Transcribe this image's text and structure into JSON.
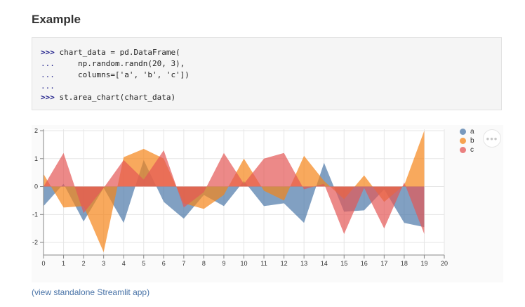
{
  "heading": "Example",
  "code": {
    "lines": [
      {
        "prompt": ">>>",
        "text": " chart_data = pd.DataFrame("
      },
      {
        "prompt": "...",
        "text": "     np.random.randn(20, 3),"
      },
      {
        "prompt": "...",
        "text": "     columns=['a', 'b', 'c'])"
      },
      {
        "prompt": "...",
        "text": ""
      },
      {
        "prompt": ">>>",
        "text": " st.area_chart(chart_data)"
      }
    ]
  },
  "more_icon": "ellipsis-icon",
  "more_label": "•••",
  "link_text": "(view standalone Streamlit app)",
  "colors": {
    "a": "#4c78a8",
    "b": "#f58518",
    "c": "#e45756"
  },
  "chart_data": {
    "type": "area",
    "x": [
      0,
      1,
      2,
      3,
      4,
      5,
      6,
      7,
      8,
      9,
      10,
      11,
      12,
      13,
      14,
      15,
      16,
      17,
      18,
      19
    ],
    "x_ticks": [
      0,
      1,
      2,
      3,
      4,
      5,
      6,
      7,
      8,
      9,
      10,
      11,
      12,
      13,
      14,
      15,
      16,
      17,
      18,
      19,
      20
    ],
    "y_ticks": [
      2,
      1,
      0,
      -1,
      -2
    ],
    "xlim": [
      0,
      20
    ],
    "ylim": [
      -2.45,
      2.05
    ],
    "grid": true,
    "legend": "right",
    "series": [
      {
        "name": "a",
        "values": [
          -0.7,
          0.1,
          -1.25,
          -0.05,
          -1.3,
          0.95,
          -0.55,
          -1.15,
          -0.3,
          -0.7,
          0.2,
          -0.7,
          -0.6,
          -1.3,
          0.85,
          -0.9,
          -0.85,
          -0.1,
          -1.3,
          -1.45
        ]
      },
      {
        "name": "b",
        "values": [
          0.45,
          -0.75,
          -0.7,
          -2.35,
          1.05,
          1.35,
          1.0,
          -0.6,
          -0.8,
          -0.3,
          1.0,
          -0.15,
          -0.5,
          1.1,
          0.2,
          -0.45,
          0.4,
          -0.55,
          0.05,
          2.0
        ]
      },
      {
        "name": "c",
        "values": [
          0.0,
          1.2,
          -0.95,
          -0.05,
          0.95,
          0.25,
          1.3,
          -0.75,
          -0.2,
          1.2,
          0.1,
          1.0,
          1.2,
          -0.1,
          0.1,
          -1.7,
          -0.05,
          -1.5,
          0.15,
          -1.7
        ]
      }
    ]
  }
}
